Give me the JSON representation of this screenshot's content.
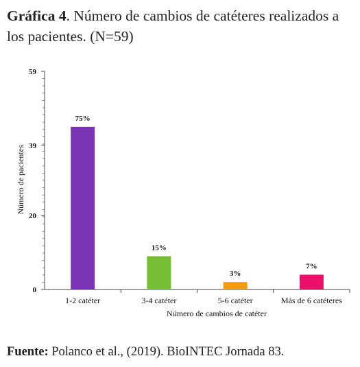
{
  "header": {
    "title_bold": "Gráfica 4",
    "title_rest": ". Número de cambios de catéteres realizados a los pacientes. (N=59)"
  },
  "footer": {
    "source_bold": "Fuente:",
    "source_rest": " Polanco et al., (2019). BioINTEC Jornada 83."
  },
  "chart_data": {
    "type": "bar",
    "title": "",
    "xlabel": "Número de cambios de catéter",
    "ylabel": "Número de pacientes",
    "ylim": [
      0,
      59
    ],
    "yticks": [
      0,
      20,
      39,
      59
    ],
    "categories": [
      "1-2 catéter",
      "3-4 catéter",
      "5-6 catéter",
      "Más de 6 catéteres"
    ],
    "values": [
      44,
      9,
      2,
      4
    ],
    "data_labels": [
      "75%",
      "15%",
      "3%",
      "7%"
    ],
    "colors": [
      "#7b35b4",
      "#76be31",
      "#f7990f",
      "#ec0f6b"
    ],
    "grid": false
  }
}
